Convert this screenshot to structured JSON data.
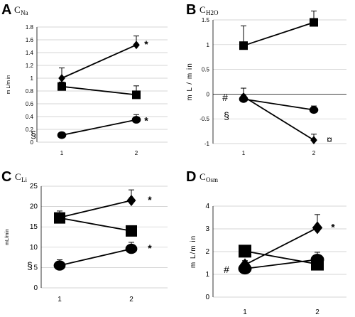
{
  "chart_data": [
    {
      "panel": "A",
      "title_main": "C",
      "title_sub": "Na",
      "type": "line",
      "xlabel": "",
      "ylabel": "m L/m in",
      "x": [
        "1",
        "2"
      ],
      "ylim": [
        0,
        1.8
      ],
      "yticks": [
        "0",
        "0.2",
        "0.4",
        "0.6",
        "0.8",
        "1",
        "1.2",
        "1.4",
        "1.6",
        "1.8"
      ],
      "series": [
        {
          "marker": "diamond",
          "values": [
            1.0,
            1.52
          ],
          "err": [
            0.16,
            0.14
          ]
        },
        {
          "marker": "square",
          "values": [
            0.87,
            0.74
          ],
          "err": [
            0.07,
            0.14
          ]
        },
        {
          "marker": "circle",
          "values": [
            0.11,
            0.35
          ],
          "err": [
            0.02,
            0.08
          ]
        }
      ],
      "annotations": [
        {
          "text": "*",
          "near": "series-1-point-2"
        },
        {
          "text": "*",
          "near": "series-3-point-2"
        },
        {
          "text": "§",
          "near": "series-3-point-1"
        }
      ]
    },
    {
      "panel": "B",
      "title_main": "C",
      "title_sub": "H2O",
      "type": "line",
      "xlabel": "",
      "ylabel": "m L / m in",
      "x": [
        "1",
        "2"
      ],
      "ylim": [
        -1,
        1.5
      ],
      "yticks": [
        "-1",
        "-0.5",
        "0",
        "0.5",
        "1",
        "1.5"
      ],
      "series": [
        {
          "marker": "square",
          "values": [
            0.98,
            1.45
          ],
          "err": [
            0.4,
            0.23
          ]
        },
        {
          "marker": "diamond",
          "values": [
            -0.05,
            -0.93
          ],
          "err": [
            0.17,
            0.12
          ]
        },
        {
          "marker": "circle",
          "values": [
            -0.1,
            -0.32
          ],
          "err": [
            0.07,
            0.08
          ]
        }
      ],
      "annotations": [
        {
          "text": "#",
          "near": "series-2-point-1"
        },
        {
          "text": "§",
          "near": "series-3-point-1"
        },
        {
          "text": "¤",
          "near": "series-2-point-2"
        }
      ]
    },
    {
      "panel": "C",
      "title_main": "C",
      "title_sub": "Li",
      "type": "line",
      "xlabel": "",
      "ylabel": "mL/min",
      "x": [
        "1",
        "2"
      ],
      "ylim": [
        0,
        25
      ],
      "yticks": [
        "0",
        "5",
        "10",
        "15",
        "20",
        "25"
      ],
      "series": [
        {
          "marker": "diamond",
          "values": [
            17.3,
            21.5
          ],
          "err": [
            1.6,
            2.6
          ]
        },
        {
          "marker": "square",
          "values": [
            17.2,
            14.0
          ],
          "err": [
            1.1,
            1.3
          ]
        },
        {
          "marker": "circle",
          "values": [
            5.5,
            9.6
          ],
          "err": [
            1.4,
            1.6
          ]
        }
      ],
      "annotations": [
        {
          "text": "*",
          "near": "series-1-point-2"
        },
        {
          "text": "*",
          "near": "series-3-point-2"
        },
        {
          "text": "§",
          "near": "series-3-point-1"
        }
      ]
    },
    {
      "panel": "D",
      "title_main": "C",
      "title_sub": "Osm",
      "type": "line",
      "xlabel": "",
      "ylabel": "m L/m in",
      "x": [
        "1",
        "2"
      ],
      "ylim": [
        0,
        4
      ],
      "yticks": [
        "0",
        "1",
        "2",
        "3",
        "4"
      ],
      "series": [
        {
          "marker": "diamond",
          "values": [
            1.42,
            3.05
          ],
          "err": [
            0.18,
            0.58
          ]
        },
        {
          "marker": "square",
          "values": [
            2.02,
            1.45
          ],
          "err": [
            0.15,
            0.1
          ]
        },
        {
          "marker": "circle",
          "values": [
            1.25,
            1.65
          ],
          "err": [
            0.12,
            0.32
          ]
        }
      ],
      "annotations": [
        {
          "text": "*",
          "near": "series-1-point-2"
        },
        {
          "text": "#",
          "near": "series-3-point-1"
        }
      ]
    }
  ]
}
